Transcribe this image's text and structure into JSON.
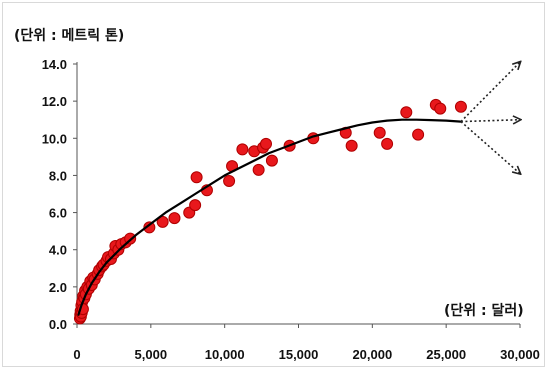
{
  "chart_data": {
    "type": "scatter",
    "y_unit_label": "(단위 :  메트릭 톤)",
    "x_unit_label": "(단위 :  달러)",
    "xlim": [
      0,
      30000
    ],
    "ylim": [
      0,
      14
    ],
    "x_ticks": [
      "0",
      "5,000",
      "10,000",
      "15,000",
      "20,000",
      "25,000",
      "30,000"
    ],
    "y_ticks": [
      "0.0",
      "2.0",
      "4.0",
      "6.0",
      "8.0",
      "10.0",
      "12.0",
      "14.0"
    ],
    "x_tick_values": [
      0,
      5000,
      10000,
      15000,
      20000,
      25000,
      30000
    ],
    "y_tick_values": [
      0,
      2,
      4,
      6,
      8,
      10,
      12,
      14
    ],
    "grid": false,
    "marker_color": "#e8181c",
    "marker_edge": "#b00000",
    "trend_color": "#000000",
    "points": [
      [
        200,
        0.3
      ],
      [
        220,
        0.5
      ],
      [
        250,
        0.7
      ],
      [
        260,
        0.4
      ],
      [
        300,
        1.0
      ],
      [
        320,
        0.6
      ],
      [
        350,
        1.2
      ],
      [
        400,
        0.8
      ],
      [
        420,
        1.5
      ],
      [
        500,
        1.4
      ],
      [
        550,
        1.8
      ],
      [
        600,
        1.6
      ],
      [
        700,
        2.0
      ],
      [
        800,
        1.9
      ],
      [
        900,
        2.3
      ],
      [
        1000,
        2.1
      ],
      [
        1100,
        2.5
      ],
      [
        1200,
        2.4
      ],
      [
        1400,
        2.7
      ],
      [
        1500,
        2.9
      ],
      [
        1700,
        3.1
      ],
      [
        1800,
        3.2
      ],
      [
        2000,
        3.4
      ],
      [
        2100,
        3.6
      ],
      [
        2300,
        3.5
      ],
      [
        2500,
        3.8
      ],
      [
        2600,
        4.2
      ],
      [
        2800,
        4.0
      ],
      [
        3000,
        4.3
      ],
      [
        3300,
        4.4
      ],
      [
        3600,
        4.6
      ],
      [
        4900,
        5.2
      ],
      [
        5800,
        5.5
      ],
      [
        6600,
        5.7
      ],
      [
        7600,
        6.0
      ],
      [
        8000,
        6.4
      ],
      [
        8100,
        7.9
      ],
      [
        8800,
        7.2
      ],
      [
        10300,
        7.7
      ],
      [
        10500,
        8.5
      ],
      [
        11200,
        9.4
      ],
      [
        12000,
        9.3
      ],
      [
        12300,
        8.3
      ],
      [
        12600,
        9.5
      ],
      [
        12800,
        9.7
      ],
      [
        13200,
        8.8
      ],
      [
        14400,
        9.6
      ],
      [
        16000,
        10.0
      ],
      [
        18200,
        10.3
      ],
      [
        18600,
        9.6
      ],
      [
        20500,
        10.3
      ],
      [
        21000,
        9.7
      ],
      [
        22300,
        11.4
      ],
      [
        23100,
        10.2
      ],
      [
        24300,
        11.8
      ],
      [
        24600,
        11.6
      ],
      [
        26000,
        11.7
      ]
    ],
    "trend_curve": [
      [
        100,
        0.5
      ],
      [
        300,
        1.0
      ],
      [
        600,
        1.6
      ],
      [
        1000,
        2.2
      ],
      [
        1500,
        2.8
      ],
      [
        2000,
        3.3
      ],
      [
        3000,
        4.1
      ],
      [
        4000,
        4.8
      ],
      [
        5000,
        5.4
      ],
      [
        6000,
        6.0
      ],
      [
        7000,
        6.5
      ],
      [
        8000,
        7.0
      ],
      [
        9000,
        7.5
      ],
      [
        10000,
        8.0
      ],
      [
        11000,
        8.4
      ],
      [
        12000,
        8.8
      ],
      [
        13000,
        9.2
      ],
      [
        14000,
        9.5
      ],
      [
        15000,
        9.8
      ],
      [
        16000,
        10.1
      ],
      [
        17000,
        10.3
      ],
      [
        18000,
        10.5
      ],
      [
        19000,
        10.7
      ],
      [
        20000,
        10.85
      ],
      [
        21000,
        10.95
      ],
      [
        22000,
        11.0
      ],
      [
        23000,
        11.0
      ],
      [
        24000,
        10.98
      ],
      [
        25000,
        10.95
      ],
      [
        26000,
        10.9
      ]
    ],
    "projection_arrows": [
      {
        "from": [
          26000,
          10.9
        ],
        "to": [
          30000,
          14.1
        ]
      },
      {
        "from": [
          26000,
          10.9
        ],
        "to": [
          30000,
          11.0
        ]
      },
      {
        "from": [
          26000,
          10.9
        ],
        "to": [
          30000,
          8.1
        ]
      }
    ]
  }
}
